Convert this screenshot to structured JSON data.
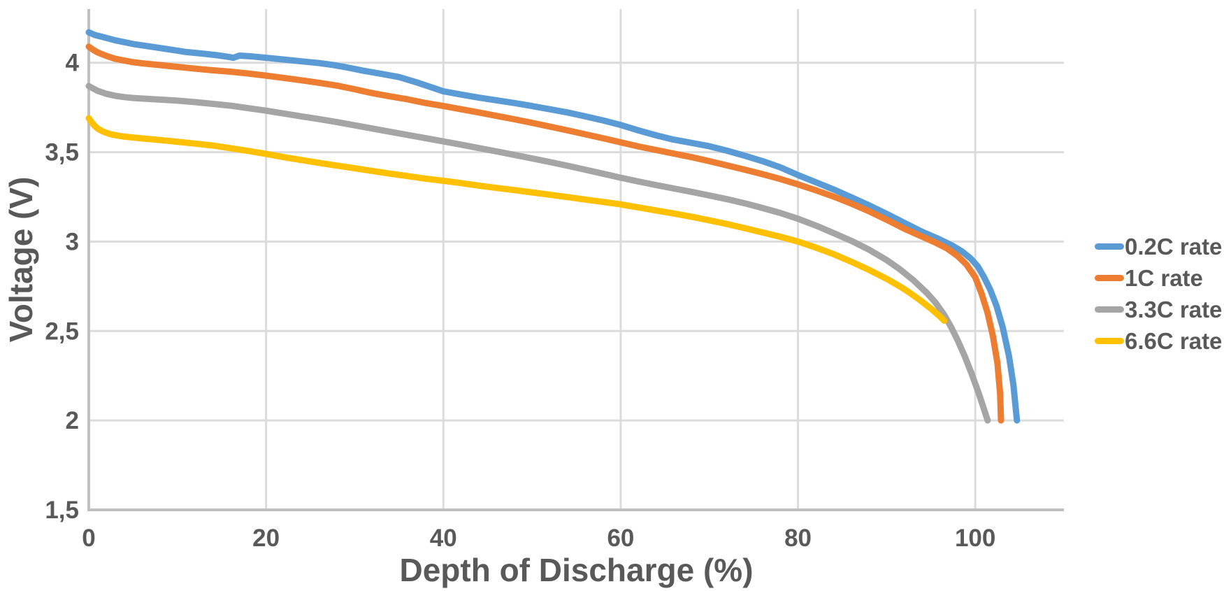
{
  "chart_data": {
    "type": "line",
    "title": "",
    "xlabel": "Depth of Discharge (%)",
    "ylabel": "Voltage (V)",
    "xlim": [
      0,
      110
    ],
    "ylim": [
      1.5,
      4.3
    ],
    "grid": true,
    "legend_position": "right",
    "x_ticks": [
      0,
      20,
      40,
      60,
      80,
      100
    ],
    "x_tick_labels": [
      "0",
      "20",
      "40",
      "60",
      "80",
      "100"
    ],
    "y_ticks": [
      1.5,
      2,
      2.5,
      3,
      3.5,
      4
    ],
    "y_tick_labels": [
      "1,5",
      "2",
      "2,5",
      "3",
      "3,5",
      "4"
    ],
    "series": [
      {
        "name": "0.2C rate",
        "color": "#5B9BD5",
        "points": [
          [
            0,
            4.17
          ],
          [
            0.7,
            4.155
          ],
          [
            1.5,
            4.145
          ],
          [
            3,
            4.125
          ],
          [
            5,
            4.105
          ],
          [
            7,
            4.09
          ],
          [
            9,
            4.075
          ],
          [
            11,
            4.06
          ],
          [
            13,
            4.05
          ],
          [
            14.5,
            4.042
          ],
          [
            15.5,
            4.035
          ],
          [
            16.3,
            4.028
          ],
          [
            17,
            4.04
          ],
          [
            18.5,
            4.035
          ],
          [
            20,
            4.028
          ],
          [
            22,
            4.018
          ],
          [
            24,
            4.008
          ],
          [
            26,
            3.998
          ],
          [
            27.5,
            3.988
          ],
          [
            29,
            3.975
          ],
          [
            31,
            3.955
          ],
          [
            33,
            3.938
          ],
          [
            35,
            3.92
          ],
          [
            37,
            3.89
          ],
          [
            39,
            3.857
          ],
          [
            40,
            3.84
          ],
          [
            42,
            3.822
          ],
          [
            44,
            3.805
          ],
          [
            46,
            3.79
          ],
          [
            48,
            3.775
          ],
          [
            50,
            3.758
          ],
          [
            52,
            3.74
          ],
          [
            54,
            3.722
          ],
          [
            56,
            3.7
          ],
          [
            58,
            3.678
          ],
          [
            60,
            3.652
          ],
          [
            62,
            3.622
          ],
          [
            64,
            3.594
          ],
          [
            66,
            3.57
          ],
          [
            68,
            3.552
          ],
          [
            70,
            3.533
          ],
          [
            72,
            3.508
          ],
          [
            74,
            3.48
          ],
          [
            76,
            3.45
          ],
          [
            78,
            3.415
          ],
          [
            80,
            3.372
          ],
          [
            82,
            3.332
          ],
          [
            84,
            3.292
          ],
          [
            86,
            3.248
          ],
          [
            88,
            3.203
          ],
          [
            90,
            3.155
          ],
          [
            92,
            3.105
          ],
          [
            94,
            3.055
          ],
          [
            96,
            3.012
          ],
          [
            97.5,
            2.975
          ],
          [
            98.5,
            2.945
          ],
          [
            99.5,
            2.905
          ],
          [
            100.3,
            2.86
          ],
          [
            101,
            2.8
          ],
          [
            101.7,
            2.73
          ],
          [
            102.4,
            2.64
          ],
          [
            103.1,
            2.52
          ],
          [
            103.8,
            2.36
          ],
          [
            104.3,
            2.2
          ],
          [
            104.6,
            2.05
          ],
          [
            104.7,
            2.0
          ]
        ]
      },
      {
        "name": "1C rate",
        "color": "#ED7D31",
        "points": [
          [
            0,
            4.09
          ],
          [
            0.5,
            4.072
          ],
          [
            1,
            4.058
          ],
          [
            2,
            4.038
          ],
          [
            3,
            4.022
          ],
          [
            4,
            4.012
          ],
          [
            5,
            4.003
          ],
          [
            6,
            3.997
          ],
          [
            8,
            3.987
          ],
          [
            10,
            3.977
          ],
          [
            12,
            3.967
          ],
          [
            14,
            3.958
          ],
          [
            16,
            3.95
          ],
          [
            18,
            3.94
          ],
          [
            20,
            3.928
          ],
          [
            22,
            3.915
          ],
          [
            24,
            3.902
          ],
          [
            26,
            3.888
          ],
          [
            28,
            3.872
          ],
          [
            30,
            3.852
          ],
          [
            32,
            3.83
          ],
          [
            34,
            3.812
          ],
          [
            36,
            3.795
          ],
          [
            38,
            3.775
          ],
          [
            40,
            3.758
          ],
          [
            42,
            3.74
          ],
          [
            44,
            3.722
          ],
          [
            46,
            3.703
          ],
          [
            48,
            3.684
          ],
          [
            50,
            3.664
          ],
          [
            52,
            3.643
          ],
          [
            54,
            3.622
          ],
          [
            56,
            3.6
          ],
          [
            58,
            3.578
          ],
          [
            60,
            3.555
          ],
          [
            62,
            3.532
          ],
          [
            64,
            3.512
          ],
          [
            66,
            3.492
          ],
          [
            68,
            3.472
          ],
          [
            70,
            3.45
          ],
          [
            72,
            3.426
          ],
          [
            74,
            3.402
          ],
          [
            76,
            3.377
          ],
          [
            78,
            3.35
          ],
          [
            80,
            3.32
          ],
          [
            82,
            3.287
          ],
          [
            84,
            3.252
          ],
          [
            86,
            3.213
          ],
          [
            88,
            3.17
          ],
          [
            90,
            3.122
          ],
          [
            92,
            3.072
          ],
          [
            94,
            3.028
          ],
          [
            95.5,
            2.995
          ],
          [
            96.8,
            2.962
          ],
          [
            98,
            2.92
          ],
          [
            99,
            2.872
          ],
          [
            100,
            2.8
          ],
          [
            100.7,
            2.71
          ],
          [
            101.4,
            2.6
          ],
          [
            102,
            2.47
          ],
          [
            102.5,
            2.32
          ],
          [
            102.8,
            2.15
          ],
          [
            102.9,
            2.0
          ]
        ]
      },
      {
        "name": "3.3C rate",
        "color": "#A5A5A5",
        "points": [
          [
            0,
            3.87
          ],
          [
            0.5,
            3.856
          ],
          [
            1,
            3.843
          ],
          [
            2,
            3.826
          ],
          [
            3,
            3.815
          ],
          [
            4,
            3.808
          ],
          [
            5,
            3.803
          ],
          [
            6,
            3.8
          ],
          [
            8,
            3.794
          ],
          [
            10,
            3.788
          ],
          [
            12,
            3.78
          ],
          [
            14,
            3.77
          ],
          [
            16,
            3.76
          ],
          [
            18,
            3.746
          ],
          [
            20,
            3.732
          ],
          [
            22,
            3.716
          ],
          [
            24,
            3.7
          ],
          [
            26,
            3.685
          ],
          [
            28,
            3.668
          ],
          [
            30,
            3.65
          ],
          [
            32,
            3.632
          ],
          [
            34,
            3.614
          ],
          [
            36,
            3.596
          ],
          [
            38,
            3.578
          ],
          [
            40,
            3.56
          ],
          [
            42,
            3.542
          ],
          [
            44,
            3.523
          ],
          [
            46,
            3.504
          ],
          [
            48,
            3.485
          ],
          [
            50,
            3.465
          ],
          [
            52,
            3.445
          ],
          [
            54,
            3.424
          ],
          [
            56,
            3.402
          ],
          [
            58,
            3.38
          ],
          [
            60,
            3.357
          ],
          [
            62,
            3.336
          ],
          [
            64,
            3.316
          ],
          [
            66,
            3.297
          ],
          [
            68,
            3.278
          ],
          [
            70,
            3.258
          ],
          [
            72,
            3.237
          ],
          [
            74,
            3.214
          ],
          [
            76,
            3.188
          ],
          [
            78,
            3.16
          ],
          [
            80,
            3.128
          ],
          [
            82,
            3.09
          ],
          [
            84,
            3.048
          ],
          [
            86,
            3.005
          ],
          [
            88,
            2.955
          ],
          [
            90,
            2.897
          ],
          [
            91.5,
            2.845
          ],
          [
            93,
            2.785
          ],
          [
            94.5,
            2.715
          ],
          [
            95.5,
            2.66
          ],
          [
            96.5,
            2.59
          ],
          [
            97.3,
            2.52
          ],
          [
            98,
            2.45
          ],
          [
            98.8,
            2.36
          ],
          [
            99.6,
            2.26
          ],
          [
            100.4,
            2.15
          ],
          [
            101,
            2.06
          ],
          [
            101.4,
            2.0
          ]
        ]
      },
      {
        "name": "6.6C rate",
        "color": "#FFC000",
        "points": [
          [
            0,
            3.69
          ],
          [
            0.3,
            3.668
          ],
          [
            0.7,
            3.645
          ],
          [
            1,
            3.632
          ],
          [
            1.5,
            3.618
          ],
          [
            2,
            3.608
          ],
          [
            2.5,
            3.6
          ],
          [
            3,
            3.595
          ],
          [
            4,
            3.587
          ],
          [
            5,
            3.582
          ],
          [
            6,
            3.577
          ],
          [
            8,
            3.568
          ],
          [
            10,
            3.558
          ],
          [
            12,
            3.548
          ],
          [
            14,
            3.537
          ],
          [
            16,
            3.522
          ],
          [
            18,
            3.507
          ],
          [
            20,
            3.49
          ],
          [
            22,
            3.472
          ],
          [
            24,
            3.456
          ],
          [
            26,
            3.44
          ],
          [
            28,
            3.425
          ],
          [
            30,
            3.41
          ],
          [
            32,
            3.395
          ],
          [
            34,
            3.38
          ],
          [
            36,
            3.366
          ],
          [
            38,
            3.352
          ],
          [
            40,
            3.34
          ],
          [
            42,
            3.327
          ],
          [
            44,
            3.313
          ],
          [
            46,
            3.3
          ],
          [
            48,
            3.288
          ],
          [
            50,
            3.275
          ],
          [
            52,
            3.262
          ],
          [
            54,
            3.249
          ],
          [
            56,
            3.235
          ],
          [
            58,
            3.222
          ],
          [
            60,
            3.208
          ],
          [
            62,
            3.191
          ],
          [
            64,
            3.174
          ],
          [
            66,
            3.157
          ],
          [
            68,
            3.139
          ],
          [
            70,
            3.119
          ],
          [
            72,
            3.098
          ],
          [
            74,
            3.075
          ],
          [
            76,
            3.051
          ],
          [
            78,
            3.027
          ],
          [
            80,
            3.0
          ],
          [
            82,
            2.967
          ],
          [
            84,
            2.93
          ],
          [
            86,
            2.888
          ],
          [
            88,
            2.842
          ],
          [
            90,
            2.792
          ],
          [
            91,
            2.764
          ],
          [
            92,
            2.734
          ],
          [
            93,
            2.7
          ],
          [
            94,
            2.664
          ],
          [
            95,
            2.625
          ],
          [
            96,
            2.582
          ],
          [
            96.5,
            2.558
          ]
        ]
      }
    ]
  },
  "styles": {
    "grid_color": "#DCDCDC",
    "axis_color": "#C0C0C0",
    "text_color": "#595959",
    "background": "#FFFFFF"
  }
}
